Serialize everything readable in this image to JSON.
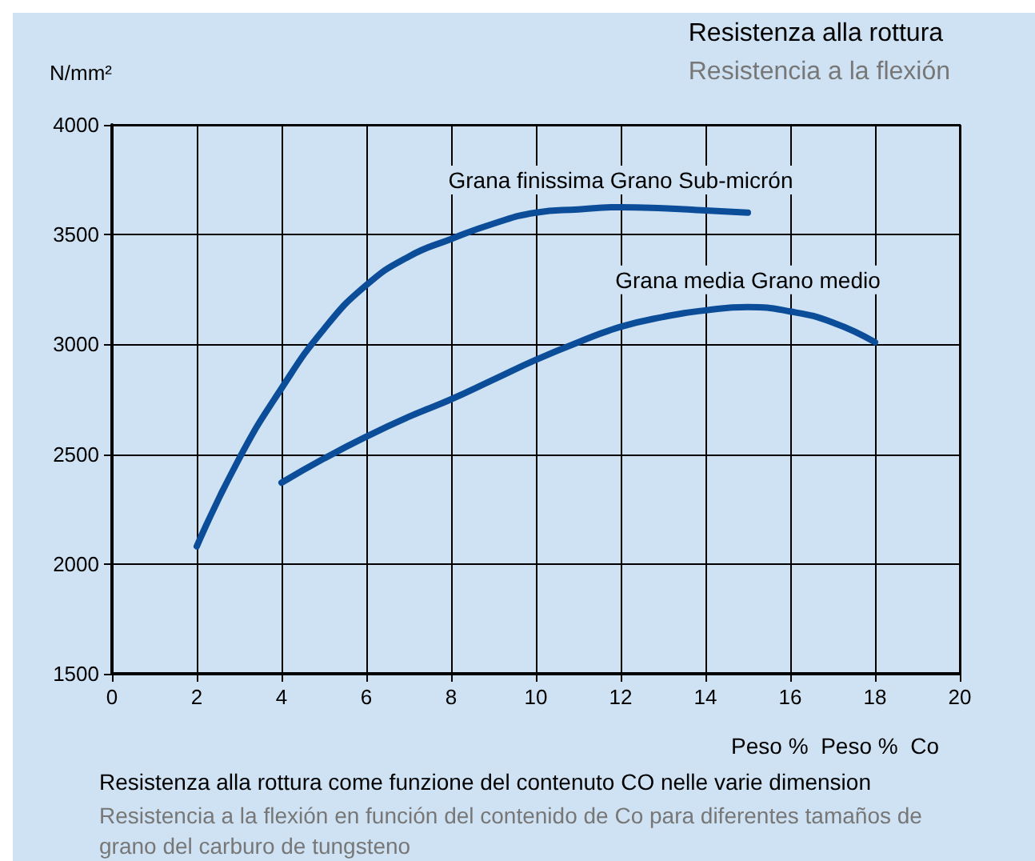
{
  "chart_data": {
    "type": "line",
    "title": "Resistenza alla rottura",
    "subtitle": "Resistencia a la flexión",
    "ylabel": "N/mm²",
    "xlabel": "Peso %  Peso %  Co",
    "annotations": [
      "Resistenza alla rottura come funzione del contenuto CO nelle varie dimension",
      "Resistencia a la flexión en función del contenido de Co para diferentes tamaños de grano del carburo de tungsteno"
    ],
    "series": [
      {
        "name": "Grana finissima Grano Sub-micrón",
        "color": "#0b4d99",
        "x": [
          2,
          3,
          4,
          5,
          6,
          7,
          8,
          9,
          10,
          11,
          12,
          13,
          14,
          15
        ],
        "values": [
          2080,
          2480,
          2800,
          3070,
          3270,
          3400,
          3480,
          3550,
          3600,
          3615,
          3625,
          3620,
          3610,
          3600
        ]
      },
      {
        "name": "Grana media Grano medio",
        "color": "#0b4d99",
        "x": [
          4,
          5,
          6,
          7,
          8,
          9,
          10,
          11,
          12,
          13,
          14,
          15,
          16,
          17,
          18
        ],
        "values": [
          2370,
          2480,
          2580,
          2670,
          2750,
          2840,
          2930,
          3010,
          3080,
          3125,
          3155,
          3170,
          3150,
          3100,
          3010
        ]
      }
    ],
    "xlim": [
      0,
      20
    ],
    "xticks": [
      0,
      2,
      4,
      6,
      8,
      10,
      12,
      14,
      16,
      18,
      20
    ],
    "ylim": [
      1500,
      4000
    ],
    "yticks": [
      1500,
      2000,
      2500,
      3000,
      3500,
      4000
    ],
    "grid": true,
    "legend": false,
    "marker": "none",
    "line_style": "solid"
  }
}
